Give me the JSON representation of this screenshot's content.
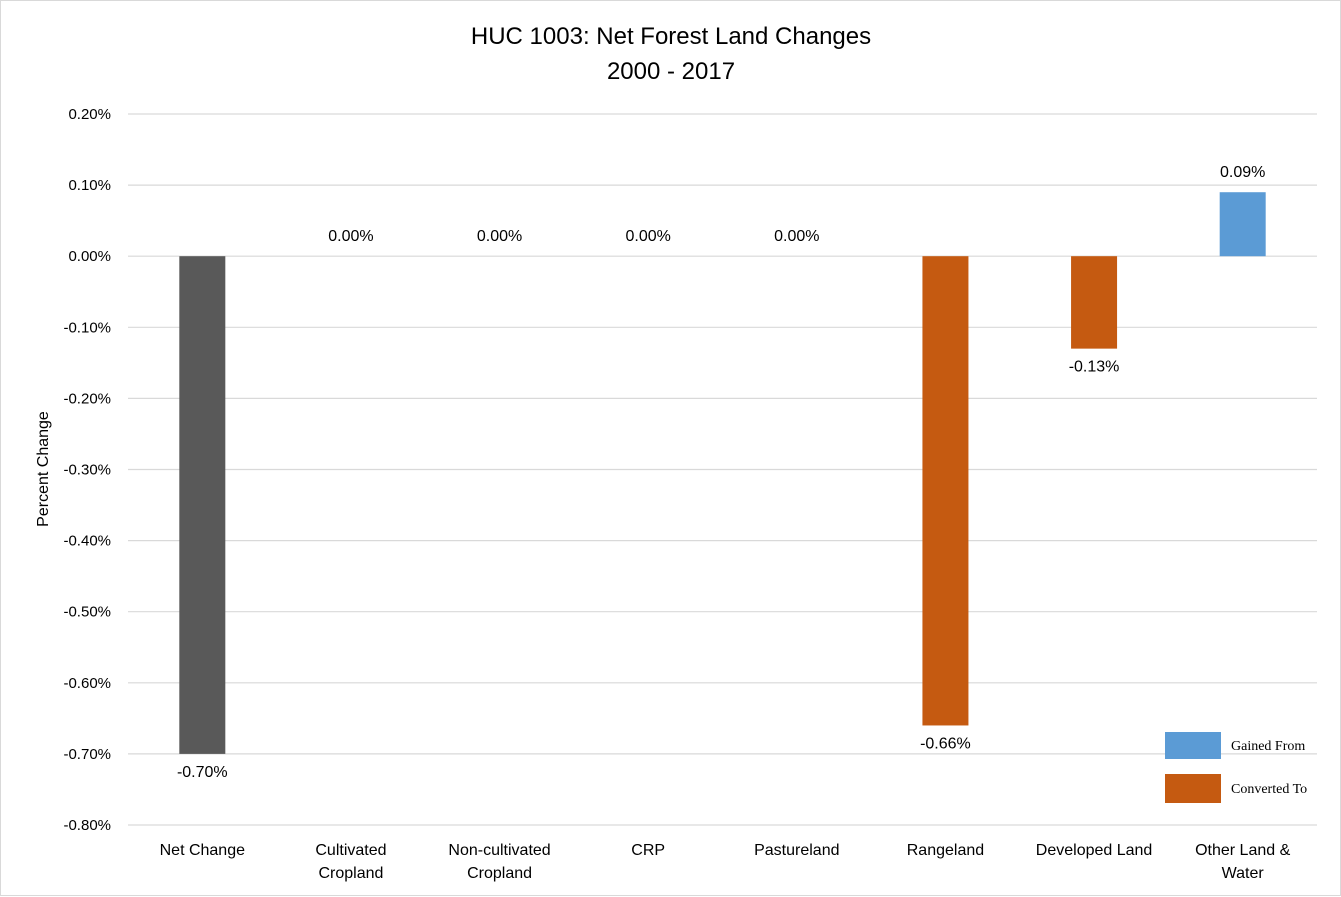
{
  "colors": {
    "net": "#595959",
    "converted": "#c55a11",
    "gained": "#5b9bd5",
    "grid": "#d9d9d9"
  },
  "chart_data": {
    "type": "bar",
    "title": "HUC 1003: Net Forest Land Changes",
    "subtitle": "2000 - 2017",
    "xlabel": "",
    "ylabel": "Percent Change",
    "ylim": [
      -0.8,
      0.2
    ],
    "yticks": [
      0.2,
      0.1,
      0.0,
      -0.1,
      -0.2,
      -0.3,
      -0.4,
      -0.5,
      -0.6,
      -0.7,
      -0.8
    ],
    "ytick_labels": [
      "0.20%",
      "0.10%",
      "0.00%",
      "-0.10%",
      "-0.20%",
      "-0.30%",
      "-0.40%",
      "-0.50%",
      "-0.60%",
      "-0.70%",
      "-0.80%"
    ],
    "grid": true,
    "categories": [
      [
        "Net Change"
      ],
      [
        "Cultivated",
        "Cropland"
      ],
      [
        "Non-cultivated",
        "Cropland"
      ],
      [
        "CRP"
      ],
      [
        "Pastureland"
      ],
      [
        "Rangeland"
      ],
      [
        "Developed Land"
      ],
      [
        "Other Land &",
        "Water"
      ]
    ],
    "values": [
      -0.7,
      0.0,
      0.0,
      0.0,
      0.0,
      -0.66,
      -0.13,
      0.09
    ],
    "data_labels": [
      "-0.70%",
      "0.00%",
      "0.00%",
      "0.00%",
      "0.00%",
      "-0.66%",
      "-0.13%",
      "0.09%"
    ],
    "bar_types": [
      "net",
      "converted",
      "converted",
      "converted",
      "converted",
      "converted",
      "converted",
      "gained"
    ],
    "legend": {
      "position": "bottom-right",
      "entries": [
        {
          "label": "Gained From",
          "type": "gained"
        },
        {
          "label": "Converted To",
          "type": "converted"
        }
      ]
    }
  }
}
